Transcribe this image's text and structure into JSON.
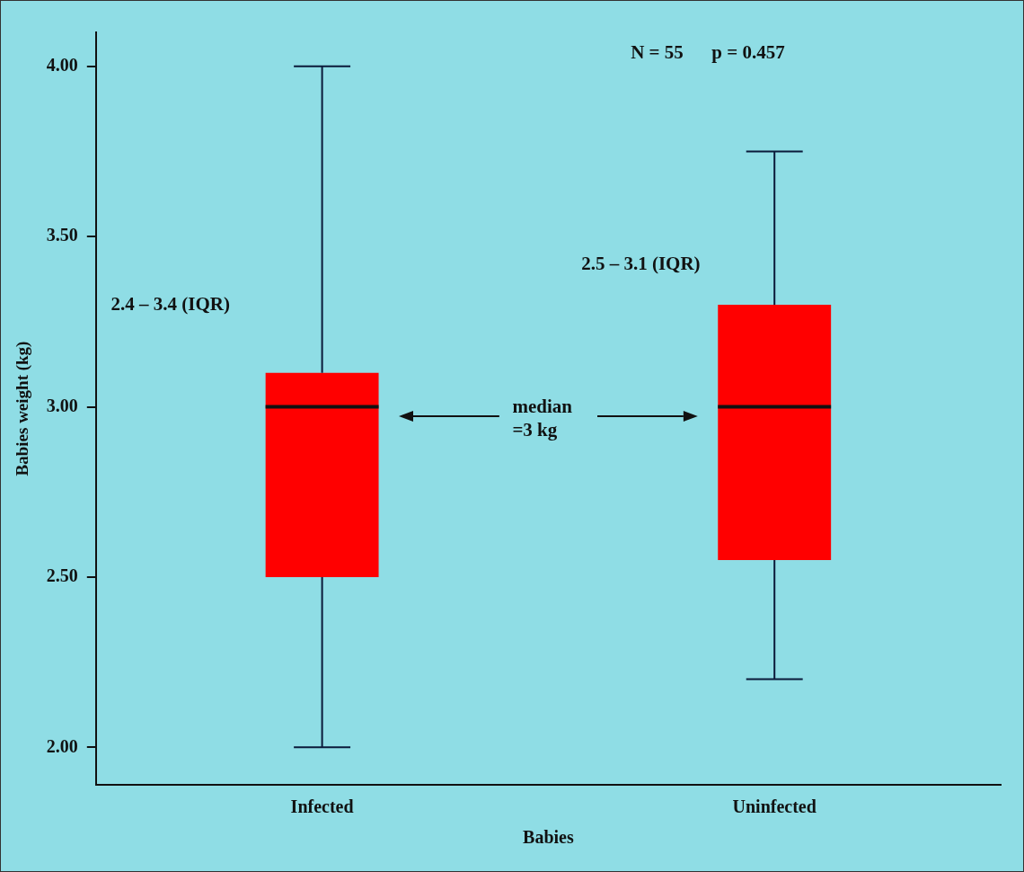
{
  "chart_data": {
    "type": "box",
    "xlabel": "Babies",
    "ylabel": "Babies weight (kg)",
    "categories": [
      "Infected",
      "Uninfected"
    ],
    "boxes": [
      {
        "low": 2.0,
        "q1": 2.5,
        "median": 3.0,
        "q3": 3.1,
        "high": 4.0
      },
      {
        "low": 2.2,
        "q1": 2.55,
        "median": 3.0,
        "q3": 3.3,
        "high": 3.75
      }
    ],
    "color": "#ff0000",
    "ylim": [
      1.89,
      4.1
    ],
    "yticks": [
      {
        "value": 2,
        "label": "2.00"
      },
      {
        "value": 2.5,
        "label": "2.50"
      },
      {
        "value": 3,
        "label": "3.00"
      },
      {
        "value": 3.5,
        "label": "3.50"
      },
      {
        "value": 4,
        "label": "4.00"
      }
    ],
    "annotations": [
      "N = 55      p = 0.457",
      "2.4 – 3.4 (IQR)",
      "2.5 – 3.1 (IQR)",
      "median\n=3 kg"
    ],
    "grid": false,
    "legend": false
  }
}
